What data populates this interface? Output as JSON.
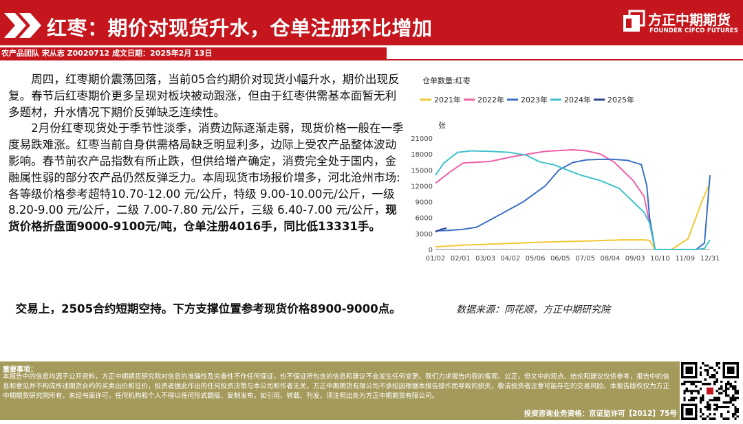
{
  "header": {
    "title": "红枣：期价对现货升水，仓单注册环比增加",
    "brand_cn": "方正中期期货",
    "brand_en": "FOUNDER CIFCO FUTURES",
    "meta": "农产品团队 宋从志 Z0020712 成文日期：2025年2月 13日"
  },
  "body": {
    "p1": "周四，红枣期价震荡回落，当前05合约期价对现货小幅升水，期价出现反复。春节后红枣期价更多呈现对板块被动跟涨，但由于红枣供需基本面暂无利多题材，升水情况下期价反弹缺乏连续性。",
    "p2_normal": "2月份红枣现货处于季节性淡季，消费边际逐渐走弱，现货价格一般在一季度易跌难涨。红枣当前自身供需格局缺乏明显利多，边际上受农产品整体波动影响。春节前农产品指数有所止跌，但供给增产确定，消费完全处于国内，金融属性弱的部分农产品仍然反弹乏力。本周现货市场报价增多，河北沧州市场:各等级价格参考超特10.70-12.00 元/公斤，特级 9.00-10.00元/公斤，一级8.20-9.00 元/公斤，二级 7.00-7.80 元/公斤，三级 6.40-7.00 元/公斤，",
    "p2_bold": "现货价格折盘面9000-9100元/吨，仓单注册4016手，同比低13331手。",
    "p3": "交易上，2505合约短期空持。下方支撑位置参考现货价格8900-9000点。"
  },
  "chart_data": {
    "type": "line",
    "title": "仓单数量:红枣",
    "ylabel": "张",
    "ylim": [
      0,
      21000
    ],
    "yticks": [
      0,
      3000,
      6000,
      9000,
      12000,
      15000,
      18000,
      21000
    ],
    "x_tick_labels": [
      "01/02",
      "02/01",
      "03/03",
      "04/02",
      "05/06",
      "06/05",
      "07/05",
      "08/04",
      "09/03",
      "10/10",
      "11/09",
      "12/31"
    ],
    "grid": false,
    "legend_position": "top",
    "series": [
      {
        "name": "2021年",
        "color": "#f2c832",
        "x": [
          0,
          0.1,
          0.25,
          0.4,
          0.55,
          0.68,
          0.76,
          0.78,
          0.8,
          0.86,
          0.92,
          0.97,
          1.0
        ],
        "values": [
          500,
          800,
          1100,
          1400,
          1600,
          1800,
          1800,
          1700,
          0,
          0,
          2000,
          9000,
          12500
        ]
      },
      {
        "name": "2022年",
        "color": "#ee5fa7",
        "x": [
          0,
          0.05,
          0.1,
          0.2,
          0.28,
          0.35,
          0.4,
          0.5,
          0.55,
          0.6,
          0.65,
          0.72,
          0.76,
          0.78,
          0.8
        ],
        "values": [
          12500,
          14500,
          16300,
          16600,
          17500,
          18100,
          18500,
          18800,
          18600,
          18000,
          16500,
          13000,
          10000,
          5000,
          0
        ]
      },
      {
        "name": "2023年",
        "color": "#3a6ec6",
        "x": [
          0,
          0.05,
          0.1,
          0.15,
          0.25,
          0.32,
          0.4,
          0.45,
          0.5,
          0.55,
          0.6,
          0.65,
          0.7,
          0.75,
          0.77,
          0.78,
          0.8,
          0.95,
          0.98,
          1.0
        ],
        "values": [
          3500,
          3600,
          3800,
          4200,
          7000,
          9000,
          12000,
          15000,
          16400,
          16900,
          17000,
          17000,
          16800,
          16000,
          12000,
          6000,
          0,
          0,
          1200,
          14000
        ]
      },
      {
        "name": "2024年",
        "color": "#3fc1cc",
        "x": [
          0,
          0.03,
          0.08,
          0.13,
          0.2,
          0.27,
          0.33,
          0.38,
          0.43,
          0.48,
          0.53,
          0.6,
          0.67,
          0.72,
          0.76,
          0.78,
          0.8,
          0.95,
          0.98,
          1.0
        ],
        "values": [
          14000,
          16300,
          18300,
          18600,
          18500,
          18300,
          17800,
          16500,
          16000,
          15000,
          14000,
          13000,
          11500,
          9000,
          7000,
          5000,
          0,
          0,
          200,
          1800
        ]
      },
      {
        "name": "2025年",
        "color": "#2a3f8f",
        "x": [
          0,
          0.02,
          0.04
        ],
        "values": [
          3300,
          3800,
          4016
        ]
      }
    ]
  },
  "source": "数据来源：同花顺，方正中期研究院",
  "footer": {
    "title": "重要事项：",
    "text": "本报告中的信息均源于公开资料，方正中期期货研究院对信息的准确性及完备性不作任何保证，也不保证所包含的信息和建议不会发生任何变更。我们力求报告内容的客观、公正，但文中的观点、结论和建议仅供参考，报告中的信息和意见并不构成所述期货合约的买卖出价和征价，投资者据此作出的任何投资决策与本公司和作者无关，方正中期期货有限公司不承担因根据本报告操作而导致的损失，敬请投资者注意可能存在的交易风险。本报告版权仅为方正中期期货研究院所有，未经书面许可，任何机构和个人不得以任何形式翻版、复制发布，如引用、转载、刊发，须注明出处为方正中期期货有限公司。",
    "license": "投资咨询业务资格：京证监许可【2012】75号"
  }
}
